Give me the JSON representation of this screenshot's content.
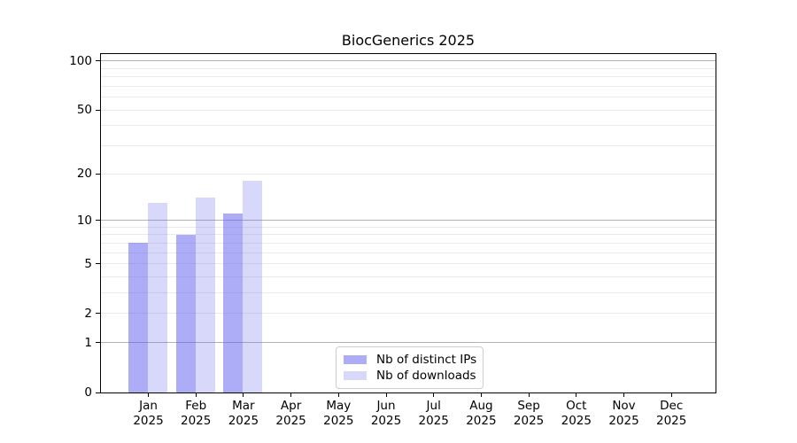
{
  "chart_data": {
    "type": "bar",
    "title": "BiocGenerics 2025",
    "year_label": "2025",
    "months": [
      "Jan",
      "Feb",
      "Mar",
      "Apr",
      "May",
      "Jun",
      "Jul",
      "Aug",
      "Sep",
      "Oct",
      "Nov",
      "Dec"
    ],
    "series": [
      {
        "name": "Nb of distinct IPs",
        "color": "rgba(90,90,240,0.5)",
        "values": [
          7,
          8,
          11,
          null,
          null,
          null,
          null,
          null,
          null,
          null,
          null,
          null
        ]
      },
      {
        "name": "Nb of downloads",
        "color": "rgba(90,90,240,0.24)",
        "values": [
          13,
          14,
          18,
          null,
          null,
          null,
          null,
          null,
          null,
          null,
          null,
          null
        ]
      }
    ],
    "y_axis": {
      "scale": "log1p",
      "ylim": [
        0,
        110
      ],
      "tick_labels": [
        100,
        50,
        20,
        10,
        5,
        2,
        1,
        0
      ],
      "strong_gridlines": [
        1,
        10,
        100
      ],
      "light_gridlines": [
        2,
        3,
        4,
        5,
        6,
        7,
        8,
        9,
        20,
        30,
        40,
        50,
        60,
        70,
        80,
        90
      ]
    },
    "legend_position": "bottom-center",
    "colors": {
      "strong_grid": "#b3b3b3",
      "light_grid": "#eaeaea",
      "axis": "#000000",
      "legend_border": "#cccccc"
    }
  }
}
